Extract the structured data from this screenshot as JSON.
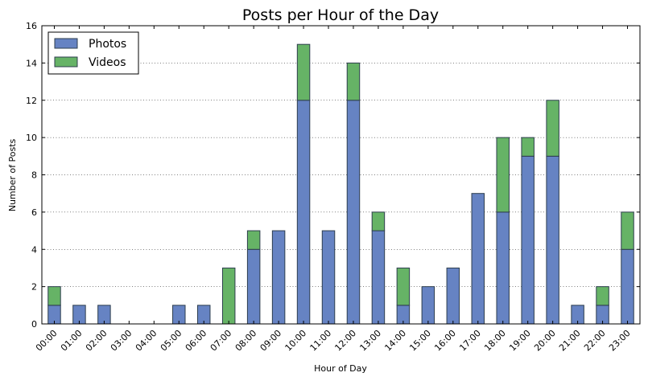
{
  "chart_data": {
    "type": "bar",
    "stacked": true,
    "title": "Posts per Hour of the Day",
    "xlabel": "Hour of Day",
    "ylabel": "Number of Posts",
    "ylim": [
      0,
      16
    ],
    "yticks": [
      0,
      2,
      4,
      6,
      8,
      10,
      12,
      14,
      16
    ],
    "grid": "horizontal dotted",
    "legend_position": "top-left",
    "categories": [
      "00:00",
      "01:00",
      "02:00",
      "03:00",
      "04:00",
      "05:00",
      "06:00",
      "07:00",
      "08:00",
      "09:00",
      "10:00",
      "11:00",
      "12:00",
      "13:00",
      "14:00",
      "15:00",
      "16:00",
      "17:00",
      "18:00",
      "19:00",
      "20:00",
      "21:00",
      "22:00",
      "23:00"
    ],
    "series": [
      {
        "name": "Photos",
        "color": "#6683c3",
        "values": [
          1,
          1,
          1,
          0,
          0,
          1,
          1,
          0,
          4,
          5,
          12,
          5,
          12,
          5,
          1,
          2,
          3,
          7,
          6,
          9,
          9,
          1,
          1,
          4
        ]
      },
      {
        "name": "Videos",
        "color": "#66b366",
        "values": [
          1,
          0,
          0,
          0,
          0,
          0,
          0,
          3,
          1,
          0,
          3,
          0,
          2,
          1,
          2,
          0,
          0,
          0,
          4,
          1,
          3,
          0,
          1,
          2
        ]
      }
    ]
  }
}
